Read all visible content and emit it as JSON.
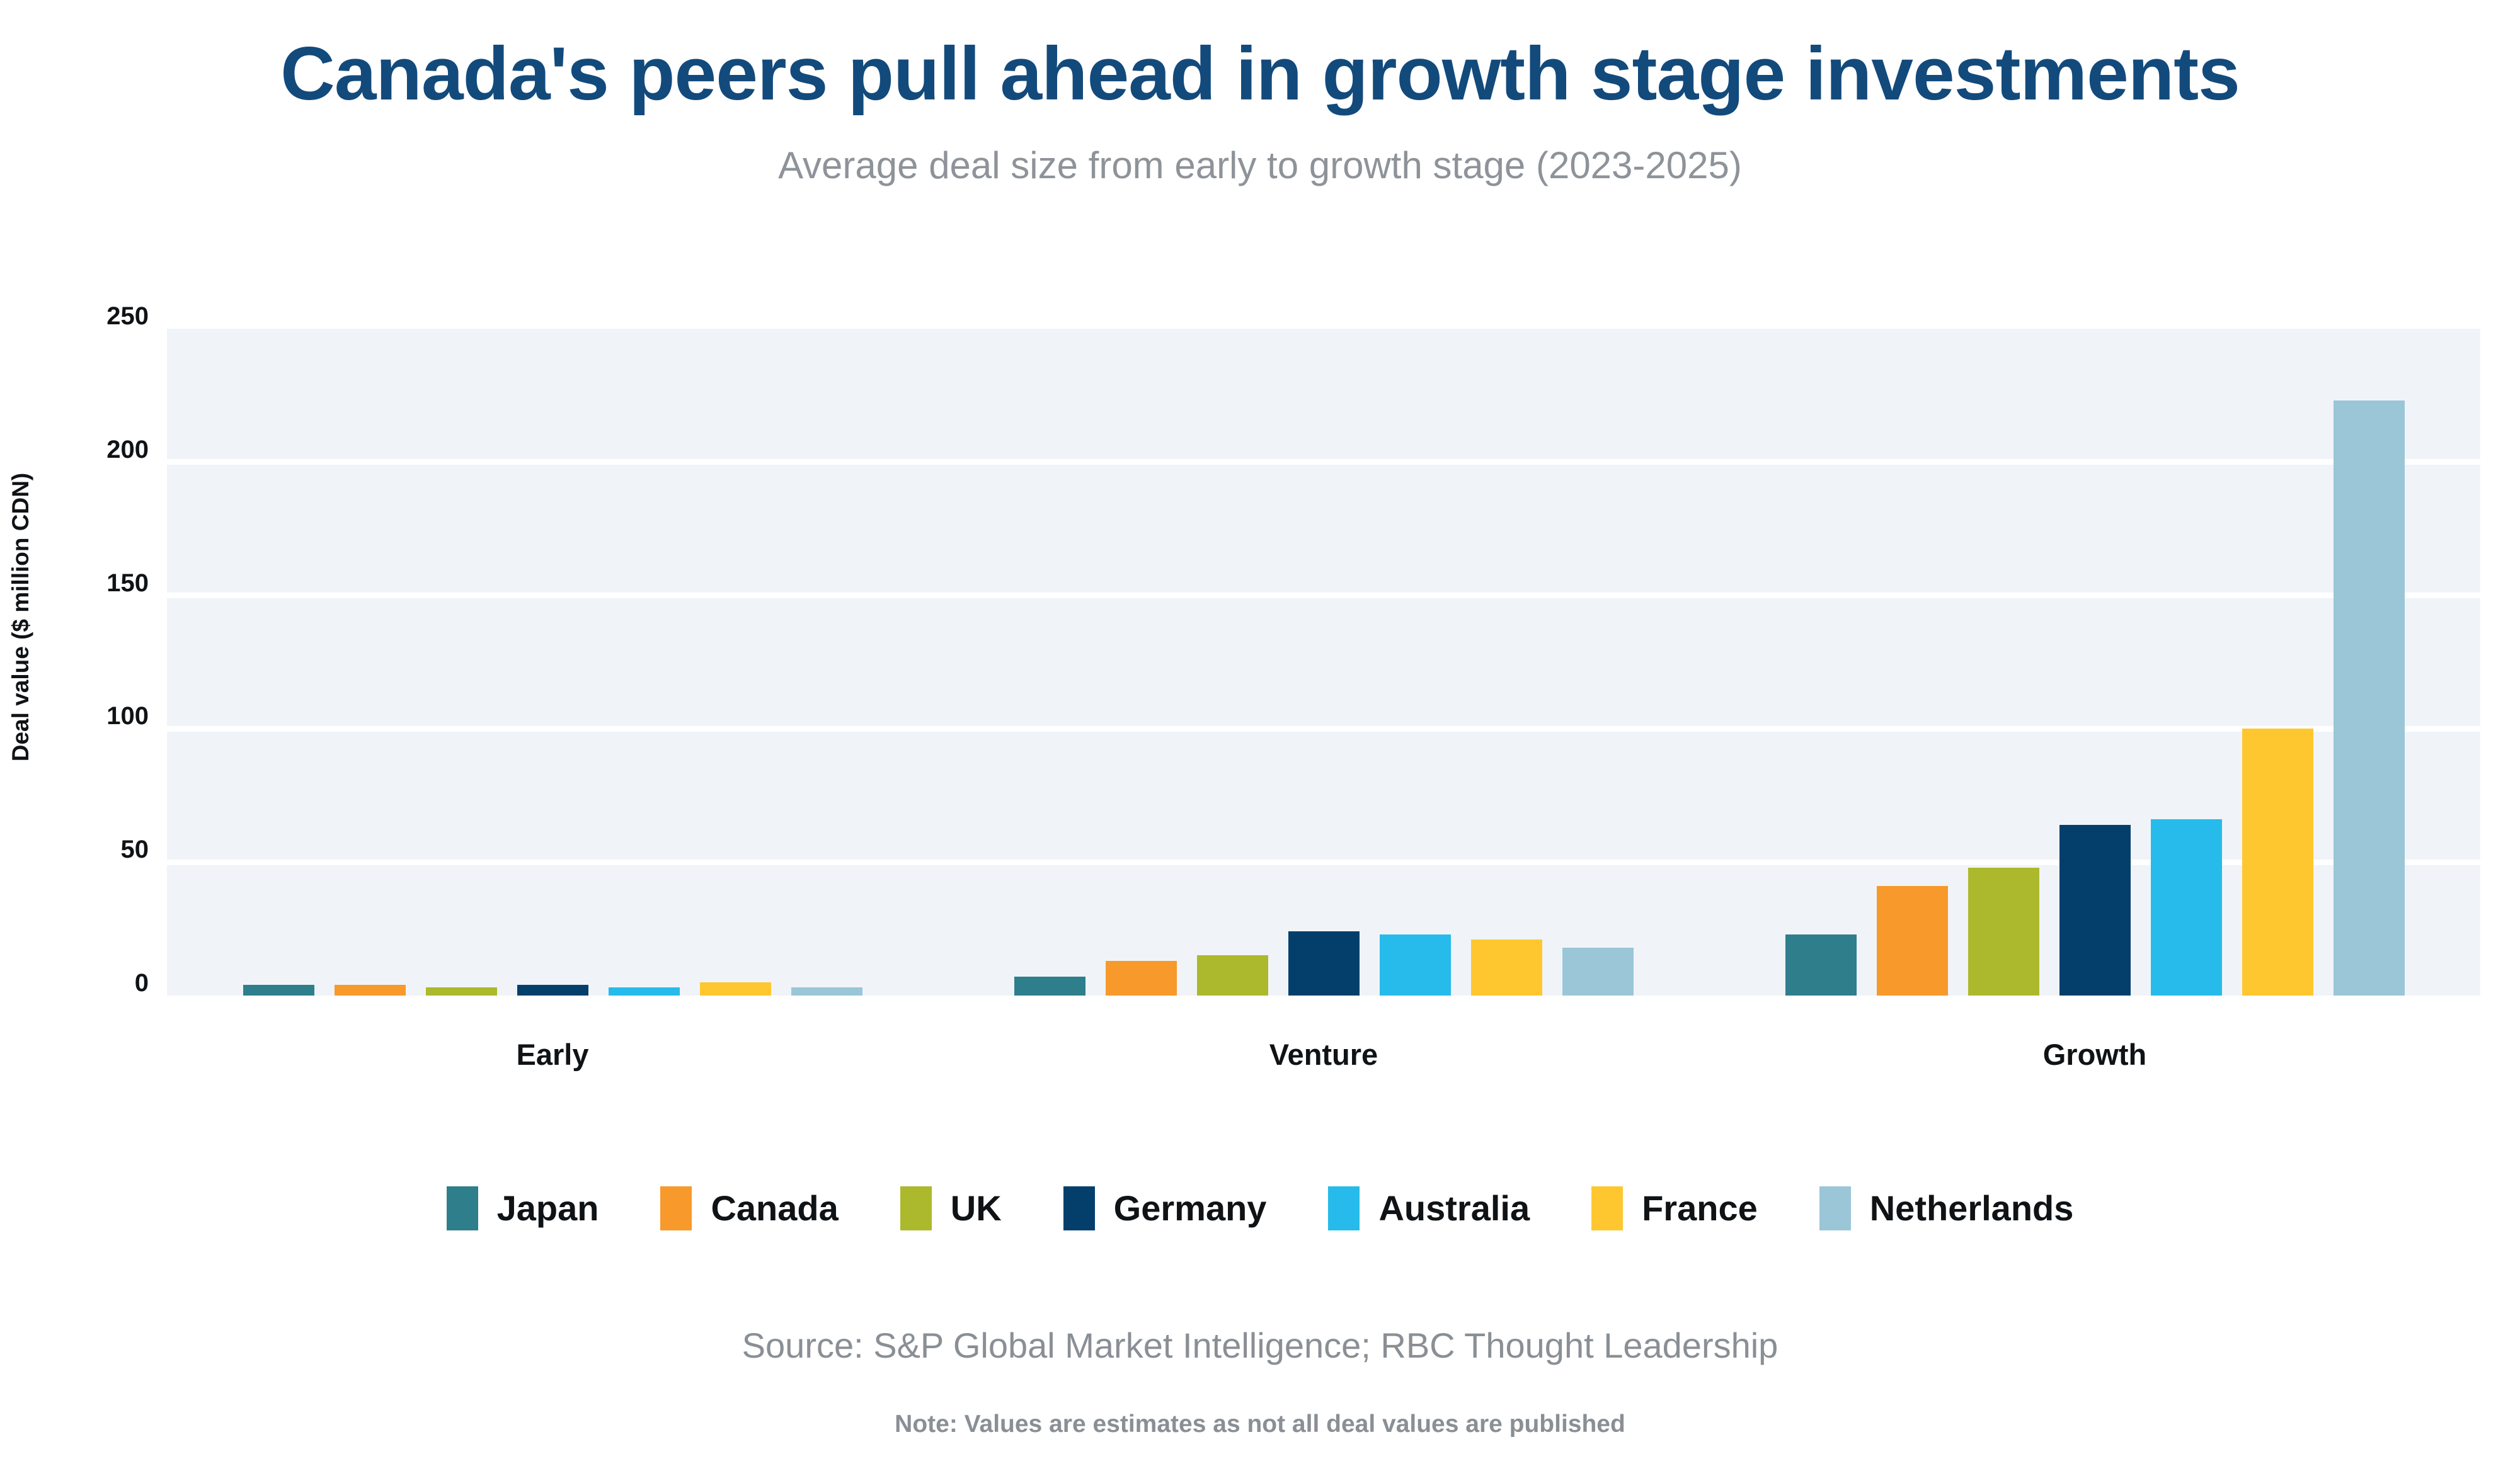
{
  "header": {
    "title": "Canada's peers pull ahead in growth stage investments",
    "subtitle": "Average deal size from early to growth stage (2023-2025)"
  },
  "colors": {
    "title": "#134A7C",
    "subtitle_gray": "#8E9399",
    "footer_gray": "#8A8F95",
    "plot_background": "#F0F4F8",
    "gridline": "#FFFFFF",
    "axis_text": "#101316"
  },
  "chart_data": {
    "type": "bar",
    "title": "Canada's peers pull ahead in growth stage investments",
    "subtitle": "Average deal size from early to growth stage (2023-2025)",
    "categories": [
      "Early",
      "Venture",
      "Growth"
    ],
    "series": [
      {
        "name": "Japan",
        "color": "#2E7E8C",
        "values": [
          4,
          7,
          23
        ]
      },
      {
        "name": "Canada",
        "color": "#F8992C",
        "values": [
          4,
          13,
          41
        ]
      },
      {
        "name": "UK",
        "color": "#ACB92C",
        "values": [
          3,
          15,
          48
        ]
      },
      {
        "name": "Germany",
        "color": "#043F6C",
        "values": [
          4,
          24,
          64
        ]
      },
      {
        "name": "Australia",
        "color": "#27BBEB",
        "values": [
          3,
          23,
          66
        ]
      },
      {
        "name": "France",
        "color": "#FFC72F",
        "values": [
          5,
          21,
          100
        ]
      },
      {
        "name": "Netherlands",
        "color": "#9AC6D8",
        "values": [
          3,
          18,
          223
        ]
      }
    ],
    "xlabel": "",
    "ylabel": "Deal value ($ million CDN)",
    "yticks": [
      0,
      50,
      100,
      150,
      200,
      250
    ],
    "ylim": [
      0,
      250
    ],
    "grid": "horizontal-white-on-light-panel",
    "legend_position": "bottom"
  },
  "footer": {
    "source": "Source: S&P Global Market Intelligence; RBC Thought Leadership",
    "note": "Note: Values are estimates as not all deal values are published"
  }
}
